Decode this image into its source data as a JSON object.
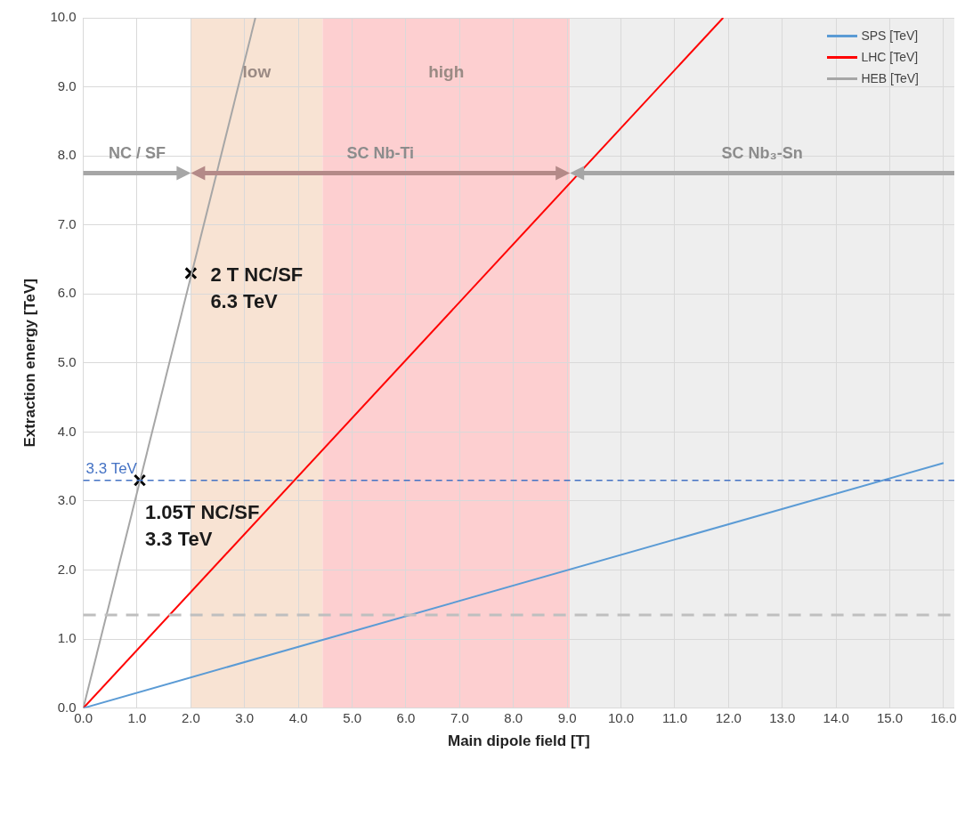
{
  "chart_data": {
    "type": "line",
    "xlabel": "Main dipole field [T]",
    "ylabel": "Extraction energy [TeV]",
    "xlim": [
      0,
      16.2
    ],
    "xticks": [
      {
        "value": 0,
        "label": "0.0"
      },
      {
        "value": 1,
        "label": "1.0"
      },
      {
        "value": 2,
        "label": "2.0"
      },
      {
        "value": 3,
        "label": "3.0"
      },
      {
        "value": 4,
        "label": "4.0"
      },
      {
        "value": 5,
        "label": "5.0"
      },
      {
        "value": 6,
        "label": "6.0"
      },
      {
        "value": 7,
        "label": "7.0"
      },
      {
        "value": 8,
        "label": "8.0"
      },
      {
        "value": 9,
        "label": "9.0"
      },
      {
        "value": 10,
        "label": "10.0"
      },
      {
        "value": 11,
        "label": "11.0"
      },
      {
        "value": 12,
        "label": "12.0"
      },
      {
        "value": 13,
        "label": "13.0"
      },
      {
        "value": 14,
        "label": "14.0"
      },
      {
        "value": 15,
        "label": "15.0"
      },
      {
        "value": 16,
        "label": "16.0"
      }
    ],
    "ylim": [
      0,
      10
    ],
    "yticks": [
      {
        "value": 0,
        "label": "0.0"
      },
      {
        "value": 1,
        "label": "1.0"
      },
      {
        "value": 2,
        "label": "2.0"
      },
      {
        "value": 3,
        "label": "3.0"
      },
      {
        "value": 4,
        "label": "4.0"
      },
      {
        "value": 5,
        "label": "5.0"
      },
      {
        "value": 6,
        "label": "6.0"
      },
      {
        "value": 7,
        "label": "7.0"
      },
      {
        "value": 8,
        "label": "8.0"
      },
      {
        "value": 9,
        "label": "9.0"
      },
      {
        "value": 10,
        "label": "10.0"
      }
    ],
    "grid": true,
    "legend": "top right",
    "marker": "none",
    "line_style": "solid",
    "series": [
      {
        "name": "SPS [TeV]",
        "color": "#5b9bd5",
        "x": [
          0,
          16
        ],
        "values": [
          0,
          3.55
        ]
      },
      {
        "name": "LHC [TeV]",
        "color": "#ff0000",
        "x": [
          0,
          11.9
        ],
        "values": [
          0,
          10
        ]
      },
      {
        "name": "HEB [TeV]",
        "color": "#a6a6a6",
        "x": [
          0,
          3.2
        ],
        "values": [
          0,
          10
        ]
      },
      {
        "type": "scatter",
        "marker": "cross",
        "color": "#000000",
        "x": [
          1.05,
          2.0
        ],
        "values": [
          3.3,
          6.3
        ]
      }
    ],
    "bands": [
      {
        "axis": "x",
        "from": 2.0,
        "to": 4.45,
        "label": "low",
        "color": "#f8e3d3"
      },
      {
        "axis": "x",
        "from": 4.45,
        "to": 9.05,
        "label": "high",
        "color": "#fdcfd0"
      },
      {
        "axis": "x",
        "from": 9.05,
        "to": 16.2,
        "color": "#eeeeee"
      }
    ],
    "ref_lines": [
      {
        "axis": "y",
        "value": 3.3,
        "label": "3.3 TeV",
        "color": "#4472c4",
        "line_style": "dashed"
      },
      {
        "axis": "y",
        "value": 1.35,
        "color": "#bfbfbf",
        "line_style": "dashed"
      }
    ],
    "annotations": [
      "NC / SF",
      "SC Nb-Ti",
      "SC Nb₃-Sn",
      {
        "text": "2 T NC/SF\n6.3 TeV",
        "x": 2.0,
        "y": 6.3
      },
      {
        "text": "1.05T NC/SF\n3.3 TeV",
        "x": 1.05,
        "y": 3.3
      }
    ]
  }
}
